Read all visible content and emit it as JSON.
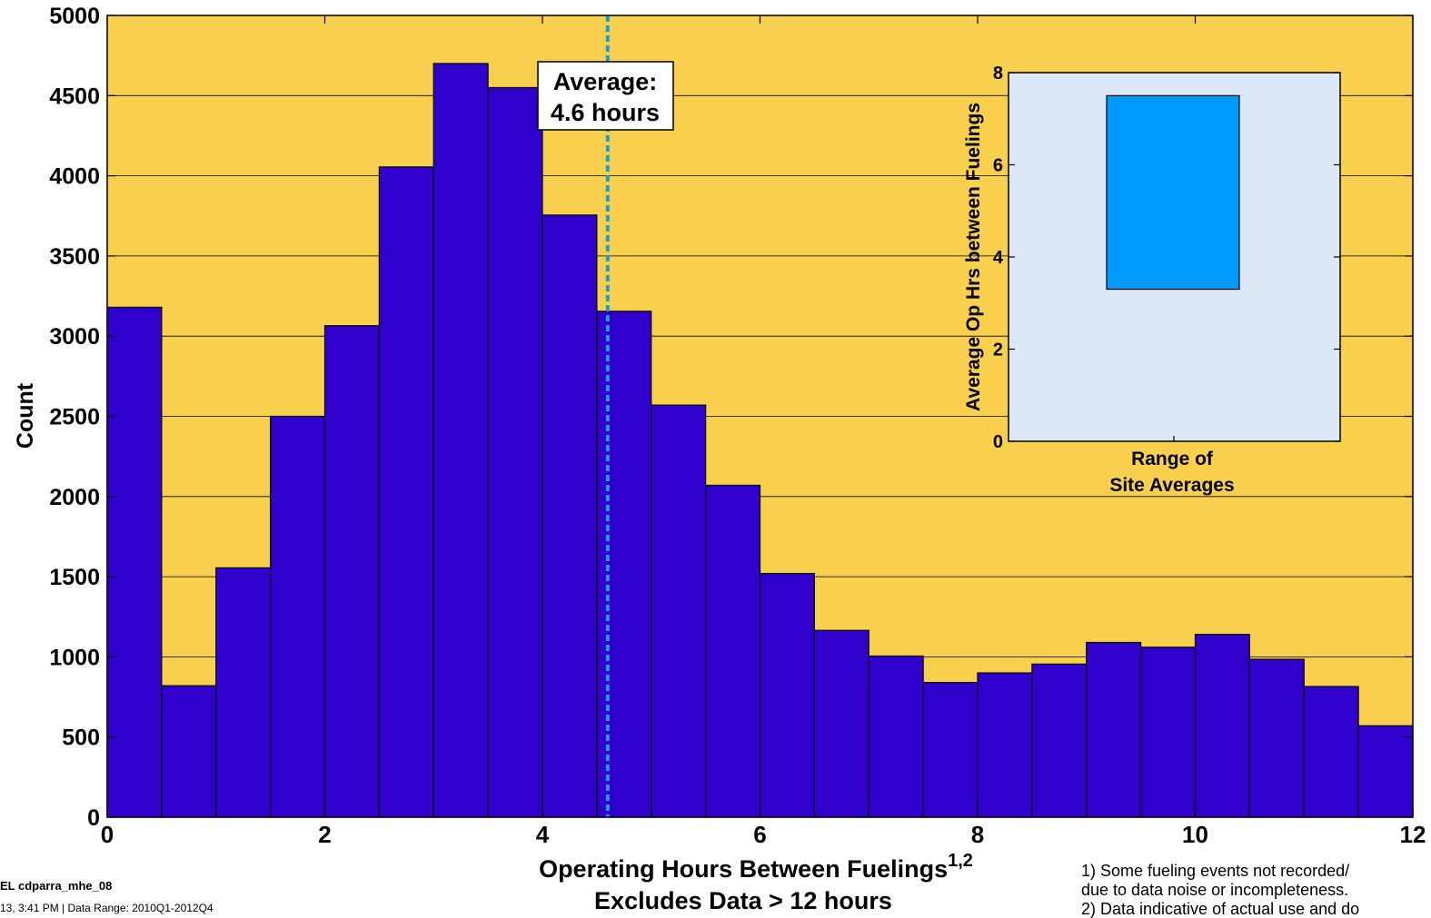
{
  "chart_data": [
    {
      "type": "bar",
      "xlabel": "Operating Hours Between Fuelings",
      "xlabel_superscript": "1,2",
      "xlabel_line2": "Excludes Data > 12 hours",
      "ylabel": "Count",
      "xlim": [
        0,
        12
      ],
      "ylim": [
        0,
        5000
      ],
      "xticks": [
        "0",
        "2",
        "4",
        "6",
        "8",
        "10",
        "12"
      ],
      "yticks": [
        "0",
        "500",
        "1000",
        "1500",
        "2000",
        "2500",
        "3000",
        "3500",
        "4000",
        "4500",
        "5000"
      ],
      "grid": "horizontal",
      "bin_width": 0.5,
      "bin_starts": [
        0,
        0.5,
        1,
        1.5,
        2,
        2.5,
        3,
        3.5,
        4,
        4.5,
        5,
        5.5,
        6,
        6.5,
        7,
        7.5,
        8,
        8.5,
        9,
        9.5,
        10,
        10.5,
        11,
        11.5
      ],
      "values": [
        3180,
        820,
        1555,
        2500,
        3065,
        4055,
        4700,
        4550,
        3755,
        3155,
        2570,
        2070,
        1520,
        1165,
        1005,
        840,
        900,
        955,
        1090,
        1060,
        1140,
        985,
        815,
        570
      ],
      "average_line": {
        "x": 4.6,
        "label_line1": "Average:",
        "label_line2": "4.6 hours"
      }
    },
    {
      "type": "bar",
      "xlabel": "Range of",
      "xlabel_line2": "Site Averages",
      "ylabel": "Average Op Hrs between Fuelings",
      "ylim": [
        0,
        8
      ],
      "yticks": [
        "0",
        "2",
        "4",
        "6",
        "8"
      ],
      "range_bar": {
        "low": 3.3,
        "high": 7.5
      }
    }
  ],
  "footer": {
    "left_line1": "EL cdparra_mhe_08",
    "left_line2": "13, 3:41 PM | Data Range: 2010Q1-2012Q4",
    "note1": "1) Some fueling events not recorded/",
    "note1b": "due to data noise or incompleteness.",
    "note2": "2) Data indicative of actual use and do"
  },
  "colors": {
    "plot_background": "#F9CF4E",
    "bar_fill": "#3000CC",
    "average_line": "#1AA0D0",
    "inset_background": "#DCE8F8",
    "range_bar": "#0099FF"
  }
}
